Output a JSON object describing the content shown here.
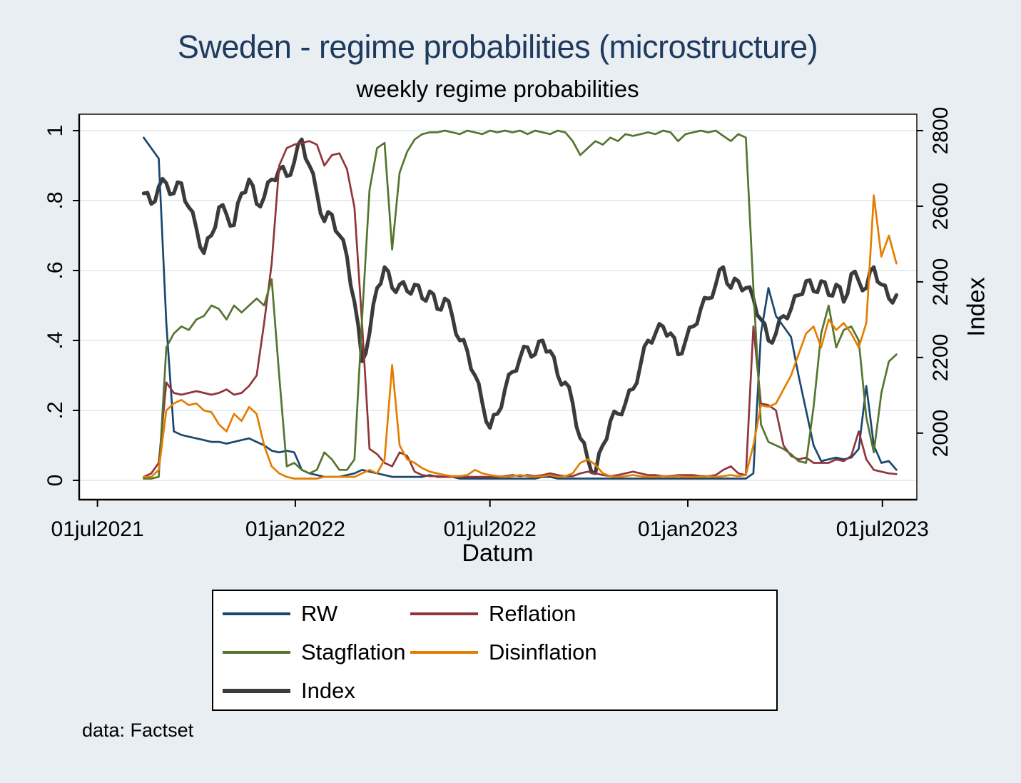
{
  "header": {
    "title_color": "#1e3a5f"
  },
  "colors": {
    "background": "#e8eef2",
    "plot_background": "#ffffff",
    "gridline": "#dde7ec",
    "axis": "#000000"
  },
  "axes": {
    "x": {
      "title": "Datum",
      "ticks": [
        {
          "label": "01jul2021",
          "date": "2021-07-01"
        },
        {
          "label": "01jan2022",
          "date": "2022-01-01"
        },
        {
          "label": "01jul2022",
          "date": "2022-07-01"
        },
        {
          "label": "01jan2023",
          "date": "2023-01-01"
        },
        {
          "label": "01jul2023",
          "date": "2023-07-01"
        }
      ]
    },
    "y_left": {
      "ticks": [
        {
          "label": "0",
          "value": 0
        },
        {
          "label": ".2",
          "value": 0.2
        },
        {
          "label": ".4",
          "value": 0.4
        },
        {
          "label": ".6",
          "value": 0.6
        },
        {
          "label": ".8",
          "value": 0.8
        },
        {
          "label": "1",
          "value": 1
        }
      ]
    },
    "y_right": {
      "title": "Index",
      "ticks": [
        {
          "label": "2000",
          "value": 2000
        },
        {
          "label": "2200",
          "value": 2200
        },
        {
          "label": "2400",
          "value": 2400
        },
        {
          "label": "2600",
          "value": 2600
        },
        {
          "label": "2800",
          "value": 2800
        }
      ]
    }
  },
  "note": "data: Factset",
  "chart_data": {
    "type": "line",
    "title": "Sweden - regime probabilities (microstructure)",
    "subtitle": "weekly regime probabilities",
    "x_axis_label": "Datum",
    "x_axis_range": [
      "2021-06-14",
      "2023-08-02"
    ],
    "x_start_date": "2021-08-13",
    "x_interval_days": 7,
    "n_points": 101,
    "ylim_left": [
      0,
      1
    ],
    "ylim_right": [
      1875,
      2800
    ],
    "grid": "horizontal",
    "legend_position": "below",
    "series": [
      {
        "name": "RW",
        "axis": "left",
        "color": "#1a476f",
        "width": 2.7,
        "values": [
          0.98,
          0.95,
          0.92,
          0.45,
          0.14,
          0.13,
          0.125,
          0.12,
          0.115,
          0.11,
          0.11,
          0.105,
          0.11,
          0.115,
          0.12,
          0.11,
          0.1,
          0.085,
          0.08,
          0.085,
          0.08,
          0.03,
          0.02,
          0.015,
          0.01,
          0.01,
          0.01,
          0.015,
          0.02,
          0.03,
          0.025,
          0.02,
          0.015,
          0.01,
          0.01,
          0.01,
          0.01,
          0.01,
          0.015,
          0.01,
          0.01,
          0.01,
          0.005,
          0.005,
          0.005,
          0.005,
          0.005,
          0.005,
          0.005,
          0.005,
          0.005,
          0.005,
          0.005,
          0.01,
          0.01,
          0.005,
          0.005,
          0.005,
          0.005,
          0.005,
          0.005,
          0.005,
          0.005,
          0.005,
          0.005,
          0.005,
          0.005,
          0.005,
          0.005,
          0.005,
          0.005,
          0.005,
          0.005,
          0.005,
          0.005,
          0.005,
          0.005,
          0.005,
          0.005,
          0.005,
          0.005,
          0.02,
          0.42,
          0.55,
          0.47,
          0.44,
          0.41,
          0.3,
          0.2,
          0.1,
          0.055,
          0.06,
          0.065,
          0.06,
          0.065,
          0.09,
          0.27,
          0.1,
          0.05,
          0.055,
          0.03
        ]
      },
      {
        "name": "Reflation",
        "axis": "left",
        "color": "#90353b",
        "width": 2.7,
        "values": [
          0.01,
          0.02,
          0.05,
          0.28,
          0.25,
          0.245,
          0.25,
          0.255,
          0.25,
          0.245,
          0.25,
          0.26,
          0.245,
          0.25,
          0.27,
          0.3,
          0.45,
          0.62,
          0.9,
          0.95,
          0.96,
          0.965,
          0.97,
          0.96,
          0.9,
          0.93,
          0.935,
          0.89,
          0.78,
          0.45,
          0.09,
          0.075,
          0.05,
          0.04,
          0.08,
          0.07,
          0.025,
          0.015,
          0.012,
          0.012,
          0.01,
          0.01,
          0.01,
          0.01,
          0.01,
          0.01,
          0.01,
          0.01,
          0.012,
          0.015,
          0.012,
          0.015,
          0.012,
          0.015,
          0.02,
          0.015,
          0.012,
          0.012,
          0.02,
          0.025,
          0.02,
          0.015,
          0.012,
          0.015,
          0.02,
          0.025,
          0.02,
          0.015,
          0.015,
          0.012,
          0.012,
          0.015,
          0.015,
          0.015,
          0.012,
          0.012,
          0.015,
          0.03,
          0.04,
          0.02,
          0.015,
          0.44,
          0.22,
          0.215,
          0.2,
          0.1,
          0.07,
          0.06,
          0.065,
          0.05,
          0.05,
          0.05,
          0.06,
          0.055,
          0.07,
          0.14,
          0.06,
          0.03,
          0.025,
          0.02,
          0.018
        ]
      },
      {
        "name": "Stagflation",
        "axis": "left",
        "color": "#55752f",
        "width": 2.7,
        "values": [
          0.005,
          0.005,
          0.01,
          0.38,
          0.42,
          0.44,
          0.43,
          0.46,
          0.47,
          0.5,
          0.49,
          0.46,
          0.5,
          0.48,
          0.5,
          0.52,
          0.5,
          0.575,
          0.3,
          0.04,
          0.05,
          0.03,
          0.02,
          0.03,
          0.08,
          0.06,
          0.03,
          0.03,
          0.06,
          0.46,
          0.83,
          0.95,
          0.965,
          0.66,
          0.88,
          0.94,
          0.975,
          0.99,
          0.995,
          0.995,
          1,
          0.995,
          0.99,
          1,
          0.995,
          0.99,
          1,
          0.995,
          1,
          0.995,
          1,
          0.99,
          1,
          0.995,
          0.99,
          1,
          0.995,
          0.97,
          0.93,
          0.95,
          0.97,
          0.96,
          0.98,
          0.97,
          0.99,
          0.985,
          0.99,
          0.995,
          0.99,
          1,
          0.995,
          0.97,
          0.99,
          0.995,
          1,
          0.995,
          1,
          0.985,
          0.97,
          0.99,
          0.98,
          0.55,
          0.16,
          0.11,
          0.1,
          0.09,
          0.075,
          0.055,
          0.05,
          0.21,
          0.42,
          0.5,
          0.38,
          0.43,
          0.44,
          0.4,
          0.18,
          0.08,
          0.25,
          0.34,
          0.36
        ]
      },
      {
        "name": "Disinflation",
        "axis": "left",
        "color": "#e37e00",
        "width": 2.7,
        "values": [
          0.01,
          0.01,
          0.03,
          0.2,
          0.22,
          0.23,
          0.215,
          0.22,
          0.2,
          0.195,
          0.16,
          0.14,
          0.19,
          0.17,
          0.21,
          0.19,
          0.1,
          0.04,
          0.02,
          0.01,
          0.005,
          0.005,
          0.005,
          0.005,
          0.01,
          0.01,
          0.01,
          0.01,
          0.01,
          0.02,
          0.03,
          0.02,
          0.06,
          0.33,
          0.1,
          0.06,
          0.05,
          0.035,
          0.025,
          0.02,
          0.015,
          0.012,
          0.012,
          0.015,
          0.03,
          0.02,
          0.015,
          0.012,
          0.01,
          0.012,
          0.015,
          0.012,
          0.01,
          0.012,
          0.015,
          0.01,
          0.012,
          0.02,
          0.05,
          0.06,
          0.045,
          0.02,
          0.012,
          0.01,
          0.012,
          0.015,
          0.012,
          0.01,
          0.01,
          0.012,
          0.01,
          0.012,
          0.01,
          0.01,
          0.01,
          0.012,
          0.01,
          0.012,
          0.015,
          0.012,
          0.015,
          0.1,
          0.215,
          0.21,
          0.22,
          0.26,
          0.3,
          0.36,
          0.42,
          0.44,
          0.38,
          0.46,
          0.43,
          0.45,
          0.42,
          0.38,
          0.45,
          0.815,
          0.64,
          0.7,
          0.62
        ]
      },
      {
        "name": "Index",
        "axis": "right",
        "color": "#3b3b3b",
        "width": 5.2,
        "values": [
          2634,
          2606,
          2652,
          2661,
          2634,
          2661,
          2597,
          2541,
          2476,
          2523,
          2597,
          2578,
          2550,
          2634,
          2671,
          2606,
          2624,
          2671,
          2698,
          2680,
          2717,
          2777,
          2708,
          2634,
          2560,
          2578,
          2523,
          2467,
          2347,
          2190,
          2264,
          2384,
          2439,
          2384,
          2393,
          2375,
          2393,
          2356,
          2375,
          2328,
          2356,
          2310,
          2245,
          2217,
          2153,
          2079,
          2014,
          2051,
          2116,
          2162,
          2199,
          2227,
          2208,
          2245,
          2217,
          2153,
          2134,
          2079,
          1986,
          1931,
          1894,
          1968,
          2032,
          2051,
          2079,
          2116,
          2180,
          2245,
          2264,
          2282,
          2264,
          2208,
          2245,
          2282,
          2328,
          2356,
          2393,
          2439,
          2384,
          2402,
          2384,
          2356,
          2301,
          2245,
          2264,
          2310,
          2328,
          2365,
          2402,
          2375,
          2402,
          2365,
          2393,
          2347,
          2421,
          2402,
          2384,
          2439,
          2393,
          2356,
          2365
        ]
      }
    ]
  }
}
